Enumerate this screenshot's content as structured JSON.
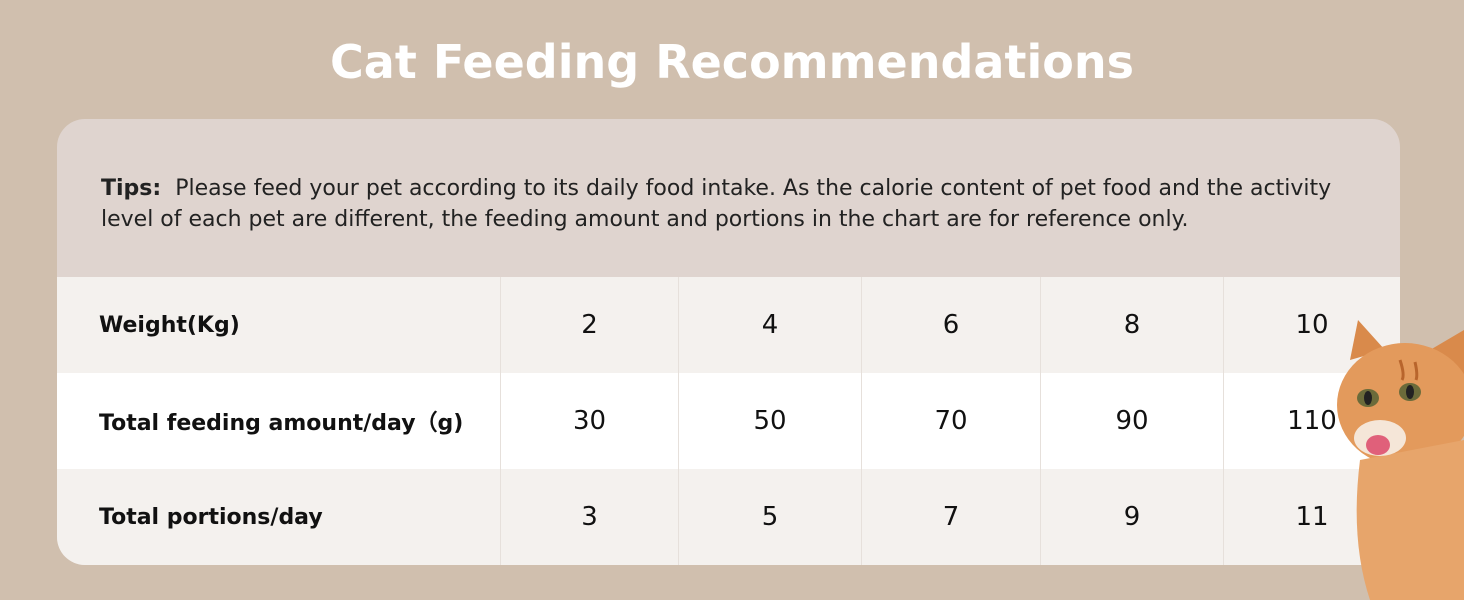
{
  "header": {
    "title": "Cat Feeding Recommendations"
  },
  "tips": {
    "label": "Tips:",
    "text": "Please feed your pet according to its daily food intake. As the calorie content of pet food and the activity level of each pet are different, the feeding amount and portions in the chart are for reference only."
  },
  "table": {
    "rows": [
      [
        "Weight(Kg)",
        2,
        4,
        6,
        8,
        10
      ],
      [
        "Total feeding amount/day（g)",
        30,
        50,
        70,
        90,
        110
      ],
      [
        "Total portions/day",
        3,
        5,
        7,
        9,
        11
      ]
    ]
  }
}
